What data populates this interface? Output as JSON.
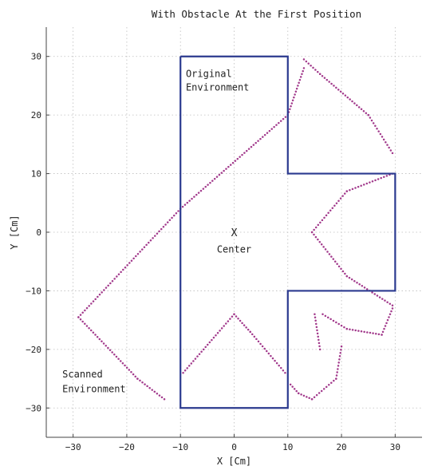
{
  "chart_data": {
    "type": "scatter",
    "title": "With Obstacle At the First Position",
    "xlabel": "X [Cm]",
    "ylabel": "Y [Cm]",
    "xlim": [
      -35,
      35
    ],
    "ylim": [
      -35,
      35
    ],
    "xticks": [
      -30,
      -20,
      -10,
      0,
      10,
      20,
      30
    ],
    "yticks": [
      -30,
      -20,
      -10,
      0,
      10,
      20,
      30
    ],
    "xtick_labels": [
      "−30",
      "−20",
      "−10",
      "0",
      "10",
      "20",
      "30"
    ],
    "ytick_labels": [
      "−30",
      "−20",
      "−10",
      "0",
      "10",
      "20",
      "30"
    ],
    "grid": true,
    "colors": {
      "environment": "#2b3a8f",
      "scan": "#a23a8c"
    },
    "annotations": [
      {
        "text": "Original",
        "x": -9,
        "y": 26.5
      },
      {
        "text": "Environment",
        "x": -9,
        "y": 24.2
      },
      {
        "text": "Scanned",
        "x": -32,
        "y": -24.8
      },
      {
        "text": "Environment",
        "x": -32,
        "y": -27.3
      },
      {
        "text": "Center",
        "x": 0,
        "y": -3.5
      }
    ],
    "center_marker": {
      "text": "X",
      "x": 0,
      "y": 0
    },
    "series": [
      {
        "name": "Original Environment",
        "kind": "polyline",
        "points": [
          [
            -10,
            30
          ],
          [
            10,
            30
          ],
          [
            10,
            10
          ],
          [
            30,
            10
          ],
          [
            30,
            -10
          ],
          [
            10,
            -10
          ],
          [
            10,
            -30
          ],
          [
            -10,
            -30
          ],
          [
            -10,
            30
          ]
        ]
      },
      {
        "name": "Scanned Environment",
        "kind": "dotted-paths",
        "segments": [
          [
            [
              -29,
              -14.5
            ],
            [
              -18,
              -25
            ],
            [
              -13,
              -28.5
            ]
          ],
          [
            [
              -29,
              -14.5
            ],
            [
              -10,
              4
            ],
            [
              10,
              20
            ],
            [
              13,
              28
            ]
          ],
          [
            [
              -9.5,
              -24
            ],
            [
              0,
              -14
            ],
            [
              3,
              -17
            ],
            [
              9.5,
              -24
            ]
          ],
          [
            [
              13,
              29.5
            ],
            [
              16,
              27
            ],
            [
              25,
              20
            ],
            [
              29.5,
              13.5
            ]
          ],
          [
            [
              14.5,
              0
            ],
            [
              21,
              7
            ],
            [
              29.5,
              10
            ]
          ],
          [
            [
              14.5,
              0
            ],
            [
              21,
              -7.5
            ],
            [
              29.5,
              -12.5
            ]
          ],
          [
            [
              29.5,
              -13
            ],
            [
              27.5,
              -17.5
            ],
            [
              21,
              -16.5
            ],
            [
              16.5,
              -14
            ]
          ],
          [
            [
              15,
              -14
            ],
            [
              16,
              -20
            ]
          ],
          [
            [
              20,
              -19.5
            ],
            [
              19,
              -25
            ],
            [
              14.5,
              -28.5
            ],
            [
              12,
              -27.5
            ],
            [
              10.5,
              -26
            ]
          ]
        ]
      }
    ]
  }
}
